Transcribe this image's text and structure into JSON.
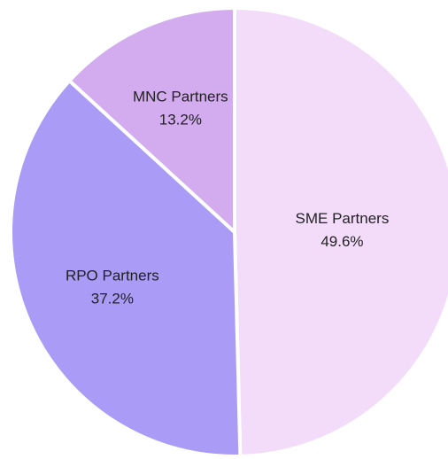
{
  "chart_data": {
    "type": "pie",
    "categories": [
      "SME Partners",
      "RPO Partners",
      "MNC Partners"
    ],
    "values": [
      49.6,
      37.2,
      13.2
    ],
    "value_labels": [
      "49.6%",
      "37.2%",
      "13.2%"
    ],
    "colors": [
      "#f3dcfa",
      "#aa9cf6",
      "#d3acef"
    ]
  }
}
